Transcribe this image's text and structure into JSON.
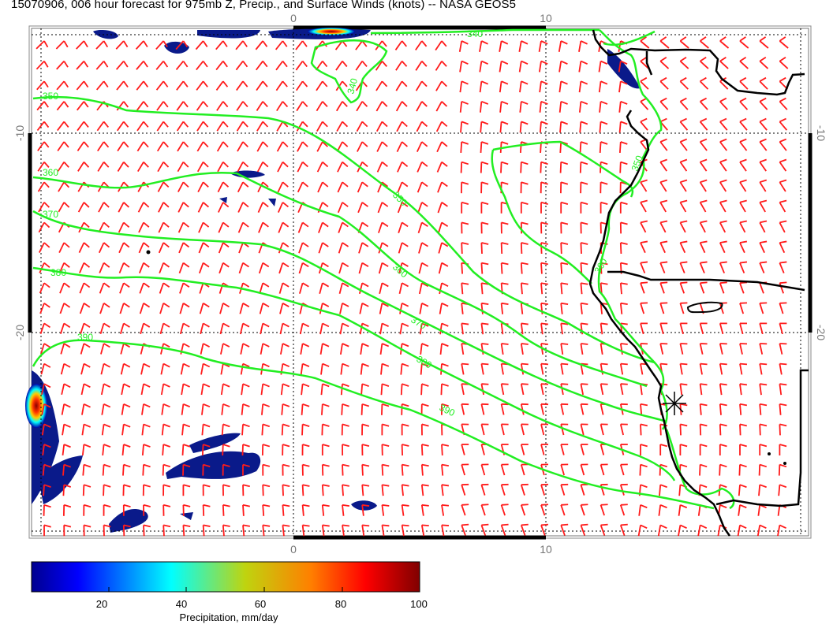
{
  "title": "15070906, 006 hour forecast for 975mb Z, Precip., and Surface Winds (knots) -- NASA GEOS5",
  "map": {
    "lon_ticks_top": [
      "0",
      "10"
    ],
    "lon_ticks_bottom": [
      "0",
      "10"
    ],
    "lat_ticks_left": [
      "-10",
      "-20"
    ],
    "lat_ticks_right": [
      "-10",
      "-20"
    ],
    "contour_labels": [
      "340",
      "340",
      "350",
      "350",
      "360",
      "360",
      "370",
      "370",
      "380",
      "380",
      "390",
      "390",
      "350",
      "360"
    ],
    "colors": {
      "contour": "#22ee22",
      "barb": "#ff1a1a",
      "coast": "#000000",
      "precip": "#0a1a8a"
    },
    "marker": "asterisk-marker"
  },
  "colorbar": {
    "label": "Precipitation, mm/day",
    "ticks": [
      "20",
      "40",
      "60",
      "80",
      "100"
    ],
    "range": [
      0,
      100
    ]
  }
}
